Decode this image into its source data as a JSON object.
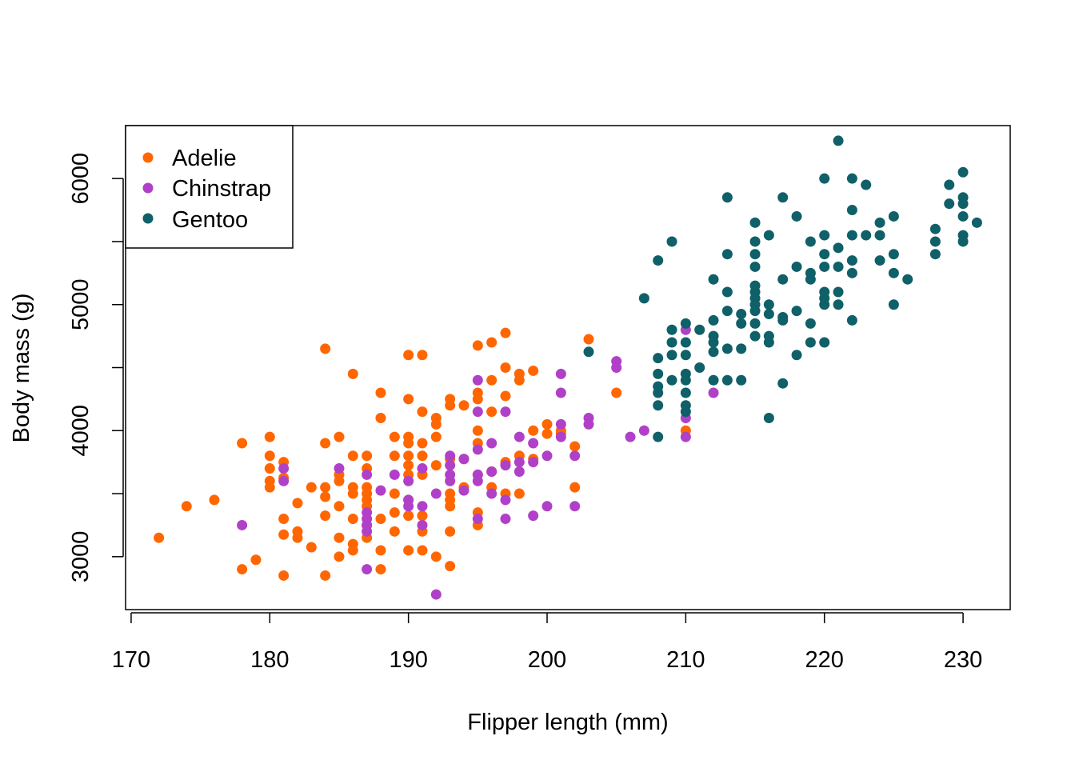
{
  "chart_data": {
    "type": "scatter",
    "title": "",
    "xlabel": "Flipper length (mm)",
    "ylabel": "Body mass (g)",
    "xlim": [
      169.6,
      233.4
    ],
    "ylim": [
      2580,
      6420
    ],
    "xticks": [
      170,
      180,
      190,
      200,
      210,
      220,
      230
    ],
    "yticks": [
      3000,
      4000,
      5000,
      6000
    ],
    "legend": "top-left",
    "grid": false,
    "series": [
      {
        "name": "Adelie",
        "color": "#FF6600",
        "points": [
          [
            172,
            3150
          ],
          [
            174,
            3400
          ],
          [
            176,
            3450
          ],
          [
            178,
            3900
          ],
          [
            178,
            2900
          ],
          [
            179,
            2975
          ],
          [
            180,
            3950
          ],
          [
            180,
            3800
          ],
          [
            180,
            3700
          ],
          [
            180,
            3600
          ],
          [
            180,
            3550
          ],
          [
            181,
            3750
          ],
          [
            181,
            3625
          ],
          [
            181,
            3300
          ],
          [
            181,
            3175
          ],
          [
            181,
            2850
          ],
          [
            182,
            3425
          ],
          [
            182,
            3200
          ],
          [
            182,
            3150
          ],
          [
            183,
            3550
          ],
          [
            183,
            3075
          ],
          [
            184,
            4650
          ],
          [
            184,
            3900
          ],
          [
            184,
            3550
          ],
          [
            184,
            3475
          ],
          [
            184,
            3325
          ],
          [
            184,
            2850
          ],
          [
            185,
            3950
          ],
          [
            185,
            3650
          ],
          [
            185,
            3600
          ],
          [
            185,
            3400
          ],
          [
            185,
            3150
          ],
          [
            185,
            3000
          ],
          [
            186,
            4450
          ],
          [
            186,
            3800
          ],
          [
            186,
            3550
          ],
          [
            186,
            3500
          ],
          [
            186,
            3300
          ],
          [
            186,
            3100
          ],
          [
            186,
            3050
          ],
          [
            187,
            3800
          ],
          [
            187,
            3700
          ],
          [
            187,
            3550
          ],
          [
            187,
            3500
          ],
          [
            187,
            3450
          ],
          [
            187,
            3400
          ],
          [
            187,
            3250
          ],
          [
            187,
            3150
          ],
          [
            188,
            4300
          ],
          [
            188,
            4100
          ],
          [
            188,
            3300
          ],
          [
            188,
            3050
          ],
          [
            188,
            2900
          ],
          [
            189,
            3950
          ],
          [
            189,
            3800
          ],
          [
            189,
            3500
          ],
          [
            189,
            3350
          ],
          [
            189,
            3200
          ],
          [
            190,
            4600
          ],
          [
            190,
            4250
          ],
          [
            190,
            3950
          ],
          [
            190,
            3900
          ],
          [
            190,
            3800
          ],
          [
            190,
            3725
          ],
          [
            190,
            3650
          ],
          [
            190,
            3450
          ],
          [
            190,
            3325
          ],
          [
            190,
            3050
          ],
          [
            191,
            4600
          ],
          [
            191,
            4150
          ],
          [
            191,
            3900
          ],
          [
            191,
            3800
          ],
          [
            191,
            3650
          ],
          [
            191,
            3325
          ],
          [
            191,
            3200
          ],
          [
            191,
            3050
          ],
          [
            192,
            4100
          ],
          [
            192,
            4050
          ],
          [
            192,
            3950
          ],
          [
            192,
            3725
          ],
          [
            192,
            3000
          ],
          [
            193,
            4250
          ],
          [
            193,
            4200
          ],
          [
            193,
            3775
          ],
          [
            193,
            3500
          ],
          [
            193,
            3450
          ],
          [
            193,
            3400
          ],
          [
            193,
            3200
          ],
          [
            193,
            2925
          ],
          [
            194,
            4200
          ],
          [
            194,
            3775
          ],
          [
            194,
            3550
          ],
          [
            195,
            4675
          ],
          [
            195,
            4300
          ],
          [
            195,
            4250
          ],
          [
            195,
            4000
          ],
          [
            195,
            3900
          ],
          [
            195,
            3650
          ],
          [
            195,
            3350
          ],
          [
            195,
            3250
          ],
          [
            196,
            4700
          ],
          [
            196,
            4400
          ],
          [
            196,
            4150
          ],
          [
            196,
            3675
          ],
          [
            196,
            3550
          ],
          [
            197,
            4775
          ],
          [
            197,
            4500
          ],
          [
            197,
            4275
          ],
          [
            197,
            3750
          ],
          [
            197,
            3500
          ],
          [
            198,
            4450
          ],
          [
            198,
            4400
          ],
          [
            198,
            3800
          ],
          [
            198,
            3500
          ],
          [
            199,
            4475
          ],
          [
            199,
            4000
          ],
          [
            199,
            3775
          ],
          [
            200,
            4050
          ],
          [
            200,
            3975
          ],
          [
            201,
            4000
          ],
          [
            201,
            3975
          ],
          [
            202,
            3875
          ],
          [
            202,
            3550
          ],
          [
            203,
            4725
          ],
          [
            205,
            4300
          ],
          [
            210,
            4000
          ]
        ]
      },
      {
        "name": "Chinstrap",
        "color": "#B040C8",
        "points": [
          [
            178,
            3250
          ],
          [
            181,
            3700
          ],
          [
            181,
            3600
          ],
          [
            185,
            3700
          ],
          [
            187,
            3650
          ],
          [
            187,
            3350
          ],
          [
            187,
            3300
          ],
          [
            187,
            3250
          ],
          [
            187,
            3200
          ],
          [
            187,
            2900
          ],
          [
            188,
            3525
          ],
          [
            189,
            3650
          ],
          [
            190,
            3600
          ],
          [
            190,
            3400
          ],
          [
            190,
            3450
          ],
          [
            191,
            3700
          ],
          [
            191,
            3400
          ],
          [
            191,
            3250
          ],
          [
            192,
            3500
          ],
          [
            192,
            2700
          ],
          [
            193,
            3800
          ],
          [
            193,
            3725
          ],
          [
            193,
            3650
          ],
          [
            193,
            3600
          ],
          [
            194,
            3775
          ],
          [
            194,
            3525
          ],
          [
            195,
            4400
          ],
          [
            195,
            4150
          ],
          [
            195,
            3850
          ],
          [
            195,
            3650
          ],
          [
            195,
            3600
          ],
          [
            195,
            3300
          ],
          [
            196,
            3900
          ],
          [
            196,
            3675
          ],
          [
            196,
            3500
          ],
          [
            197,
            4150
          ],
          [
            197,
            3725
          ],
          [
            197,
            3450
          ],
          [
            197,
            3300
          ],
          [
            198,
            3950
          ],
          [
            198,
            3750
          ],
          [
            198,
            3675
          ],
          [
            199,
            3900
          ],
          [
            199,
            3750
          ],
          [
            199,
            3325
          ],
          [
            200,
            3800
          ],
          [
            200,
            3400
          ],
          [
            201,
            4450
          ],
          [
            201,
            4300
          ],
          [
            201,
            4050
          ],
          [
            201,
            3950
          ],
          [
            202,
            3800
          ],
          [
            202,
            3400
          ],
          [
            203,
            4100
          ],
          [
            203,
            4050
          ],
          [
            205,
            4550
          ],
          [
            205,
            4500
          ],
          [
            206,
            3950
          ],
          [
            207,
            4000
          ],
          [
            210,
            4800
          ],
          [
            210,
            4100
          ],
          [
            210,
            3950
          ],
          [
            212,
            4300
          ]
        ]
      },
      {
        "name": "Gentoo",
        "color": "#0F6068",
        "points": [
          [
            203,
            4625
          ],
          [
            207,
            5050
          ],
          [
            208,
            5350
          ],
          [
            208,
            4575
          ],
          [
            208,
            4450
          ],
          [
            208,
            4350
          ],
          [
            208,
            4300
          ],
          [
            208,
            4200
          ],
          [
            208,
            3950
          ],
          [
            209,
            5500
          ],
          [
            209,
            4800
          ],
          [
            209,
            4700
          ],
          [
            209,
            4600
          ],
          [
            209,
            4400
          ],
          [
            210,
            4850
          ],
          [
            210,
            4700
          ],
          [
            210,
            4600
          ],
          [
            210,
            4450
          ],
          [
            210,
            4400
          ],
          [
            210,
            4300
          ],
          [
            210,
            4200
          ],
          [
            210,
            4150
          ],
          [
            211,
            4800
          ],
          [
            211,
            4500
          ],
          [
            212,
            5200
          ],
          [
            212,
            4875
          ],
          [
            212,
            4750
          ],
          [
            212,
            4700
          ],
          [
            212,
            4625
          ],
          [
            212,
            4400
          ],
          [
            213,
            5850
          ],
          [
            213,
            5400
          ],
          [
            213,
            5100
          ],
          [
            213,
            4950
          ],
          [
            213,
            4650
          ],
          [
            213,
            4400
          ],
          [
            214,
            4925
          ],
          [
            214,
            4850
          ],
          [
            214,
            4650
          ],
          [
            214,
            4400
          ],
          [
            215,
            5650
          ],
          [
            215,
            5500
          ],
          [
            215,
            5400
          ],
          [
            215,
            5300
          ],
          [
            215,
            5150
          ],
          [
            215,
            5100
          ],
          [
            215,
            5050
          ],
          [
            215,
            5000
          ],
          [
            215,
            4950
          ],
          [
            215,
            4850
          ],
          [
            215,
            4750
          ],
          [
            216,
            5550
          ],
          [
            216,
            5000
          ],
          [
            216,
            4925
          ],
          [
            216,
            4750
          ],
          [
            216,
            4700
          ],
          [
            216,
            4100
          ],
          [
            217,
            5850
          ],
          [
            217,
            5200
          ],
          [
            217,
            4900
          ],
          [
            217,
            4875
          ],
          [
            217,
            4375
          ],
          [
            218,
            5700
          ],
          [
            218,
            5300
          ],
          [
            218,
            4950
          ],
          [
            218,
            4600
          ],
          [
            219,
            5500
          ],
          [
            219,
            5250
          ],
          [
            219,
            5200
          ],
          [
            219,
            4850
          ],
          [
            219,
            4700
          ],
          [
            220,
            6000
          ],
          [
            220,
            5550
          ],
          [
            220,
            5400
          ],
          [
            220,
            5300
          ],
          [
            220,
            5100
          ],
          [
            220,
            5050
          ],
          [
            220,
            5000
          ],
          [
            220,
            4700
          ],
          [
            221,
            6300
          ],
          [
            221,
            5450
          ],
          [
            221,
            5300
          ],
          [
            221,
            5100
          ],
          [
            221,
            5000
          ],
          [
            222,
            6000
          ],
          [
            222,
            5750
          ],
          [
            222,
            5550
          ],
          [
            222,
            5350
          ],
          [
            222,
            5250
          ],
          [
            222,
            4875
          ],
          [
            223,
            5950
          ],
          [
            223,
            5550
          ],
          [
            224,
            5650
          ],
          [
            224,
            5550
          ],
          [
            224,
            5350
          ],
          [
            225,
            5700
          ],
          [
            225,
            5400
          ],
          [
            225,
            5250
          ],
          [
            225,
            5000
          ],
          [
            226,
            5200
          ],
          [
            228,
            5600
          ],
          [
            228,
            5500
          ],
          [
            228,
            5400
          ],
          [
            229,
            5950
          ],
          [
            229,
            5800
          ],
          [
            230,
            6050
          ],
          [
            230,
            5850
          ],
          [
            230,
            5800
          ],
          [
            230,
            5700
          ],
          [
            230,
            5550
          ],
          [
            230,
            5500
          ],
          [
            231,
            5650
          ]
        ]
      }
    ]
  }
}
